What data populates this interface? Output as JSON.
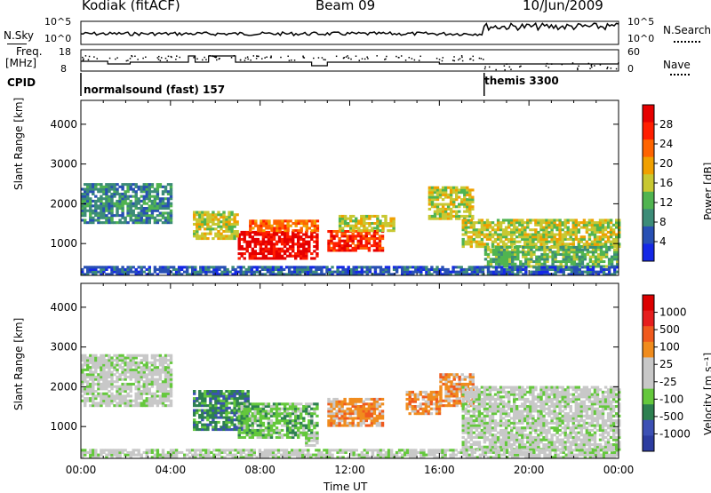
{
  "header": {
    "site": "Kodiak (fitACF)",
    "beam": "Beam 09",
    "date": "10/Jun/2009"
  },
  "noise_panel": {
    "left_label": "N.Sky",
    "right_label": "N.Search",
    "left_ticks": [
      "10^5",
      "10^0"
    ],
    "right_ticks": [
      "10^5",
      "10^0"
    ]
  },
  "freq_panel": {
    "left_label_1": "Freq.",
    "left_label_2": "[MHz]",
    "right_label": "Nave",
    "left_ticks": [
      "18",
      "8"
    ],
    "right_ticks": [
      "60",
      "0"
    ]
  },
  "cpid": {
    "label": "CPID",
    "programs": [
      {
        "name": "normalsound (fast) 157",
        "start_hour": 0
      },
      {
        "name": "themis 3300",
        "start_hour": 18
      }
    ]
  },
  "colors": {
    "power_scale": [
      "#1428e6",
      "#2850b4",
      "#3c8c78",
      "#50b450",
      "#c8c832",
      "#f0a000",
      "#ff6400",
      "#ff1e00",
      "#e60000"
    ],
    "velocity_scale": [
      "#2c3ca0",
      "#3c50b4",
      "#2d8050",
      "#64c83c",
      "#c8c8c8",
      "#c8c8c8",
      "#f08c1e",
      "#f05a1e",
      "#e61e1e",
      "#dc0000"
    ]
  },
  "chart_data": [
    {
      "type": "heatmap",
      "name": "power",
      "title": "",
      "xlabel": "",
      "ylabel": "Slant Range [km]",
      "xlim": [
        0,
        24
      ],
      "ylim": [
        200,
        4600
      ],
      "y_ticks": [
        "1000",
        "2000",
        "3000",
        "4000"
      ],
      "colorbar_label": "Power [dB]",
      "colorbar_ticks": [
        "28",
        "24",
        "20",
        "16",
        "12",
        "8",
        "4"
      ],
      "regions": [
        {
          "t0": 7.0,
          "t1": 10.5,
          "r0": 600,
          "r1": 1300,
          "level": 8
        },
        {
          "t0": 7.5,
          "t1": 10.5,
          "r0": 1300,
          "r1": 1600,
          "level": 6
        },
        {
          "t0": 11.0,
          "t1": 13.5,
          "r0": 800,
          "r1": 1300,
          "level": 7
        },
        {
          "t0": 11.5,
          "t1": 14.0,
          "r0": 1300,
          "r1": 1700,
          "level": 4
        },
        {
          "t0": 5.0,
          "t1": 7.0,
          "r0": 1100,
          "r1": 1800,
          "level": 4
        },
        {
          "t0": 0.0,
          "t1": 4.0,
          "r0": 1500,
          "r1": 2500,
          "level": 2
        },
        {
          "t0": 15.5,
          "t1": 17.5,
          "r0": 1600,
          "r1": 2400,
          "level": 4
        },
        {
          "t0": 17.0,
          "t1": 24.0,
          "r0": 900,
          "r1": 1600,
          "level": 4
        },
        {
          "t0": 18.0,
          "t1": 24.0,
          "r0": 400,
          "r1": 900,
          "level": 3
        },
        {
          "t0": 0.0,
          "t1": 24.0,
          "r0": 200,
          "r1": 400,
          "level": 1
        }
      ]
    },
    {
      "type": "heatmap",
      "name": "velocity",
      "title": "",
      "xlabel": "Time UT",
      "ylabel": "Slant Range [km]",
      "xlim": [
        0,
        24
      ],
      "ylim": [
        200,
        4600
      ],
      "x_ticks": [
        "00:00",
        "04:00",
        "08:00",
        "12:00",
        "16:00",
        "20:00",
        "00:00"
      ],
      "y_ticks": [
        "1000",
        "2000",
        "3000",
        "4000"
      ],
      "colorbar_label": "Velocity [m s⁻¹]",
      "colorbar_ticks": [
        "1000",
        "500",
        "100",
        "25",
        "-25",
        "-100",
        "-500",
        "-1000"
      ],
      "regions": [
        {
          "t0": 5.0,
          "t1": 7.5,
          "r0": 900,
          "r1": 1900,
          "level": 2
        },
        {
          "t0": 7.0,
          "t1": 10.5,
          "r0": 700,
          "r1": 1600,
          "level": 3
        },
        {
          "t0": 10.0,
          "t1": 10.5,
          "r0": 500,
          "r1": 800,
          "level": 4
        },
        {
          "t0": 11.0,
          "t1": 13.5,
          "r0": 1000,
          "r1": 1700,
          "level": 6
        },
        {
          "t0": 14.5,
          "t1": 16.0,
          "r0": 1300,
          "r1": 1900,
          "level": 6
        },
        {
          "t0": 16.0,
          "t1": 17.5,
          "r0": 1500,
          "r1": 2300,
          "level": 6
        },
        {
          "t0": 17.0,
          "t1": 24.0,
          "r0": 400,
          "r1": 2000,
          "level": 4
        },
        {
          "t0": 0.0,
          "t1": 4.0,
          "r0": 1500,
          "r1": 2800,
          "level": 4
        },
        {
          "t0": 0.0,
          "t1": 24.0,
          "r0": 200,
          "r1": 400,
          "level": 4
        }
      ]
    }
  ]
}
